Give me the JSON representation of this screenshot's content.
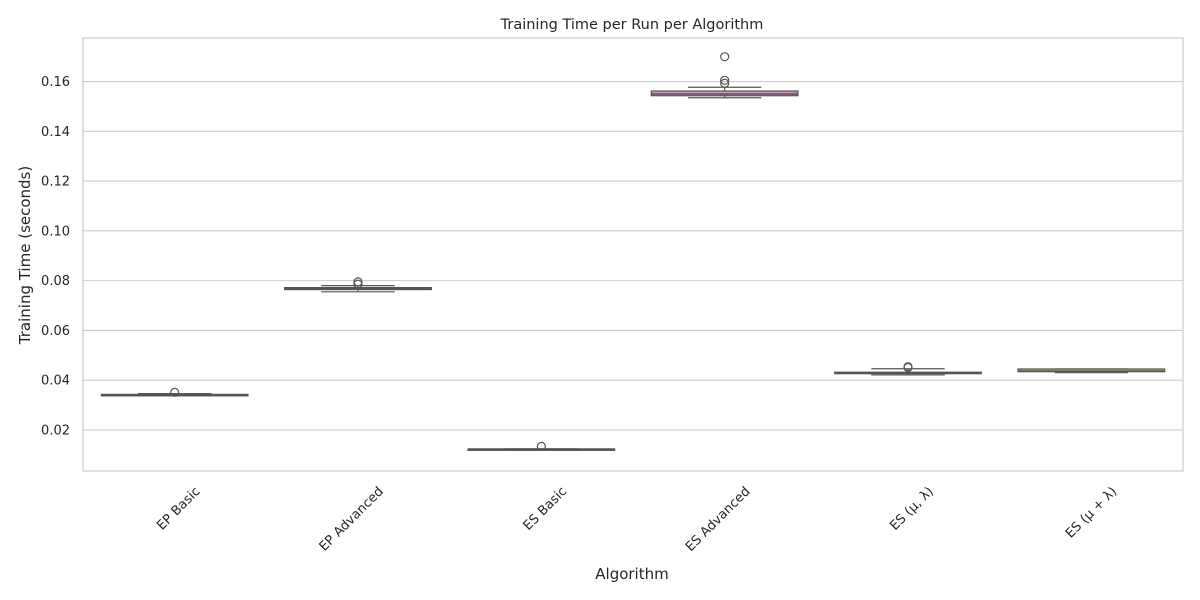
{
  "chart_data": {
    "type": "box",
    "title": "Training Time per Run per Algorithm",
    "xlabel": "Algorithm",
    "ylabel": "Training Time (seconds)",
    "ylim": [
      0.0035,
      0.1775
    ],
    "yticks": [
      0.02,
      0.04,
      0.06,
      0.08,
      0.1,
      0.12,
      0.14,
      0.16
    ],
    "ytick_labels": [
      "0.02",
      "0.04",
      "0.06",
      "0.08",
      "0.10",
      "0.12",
      "0.14",
      "0.16"
    ],
    "grid": true,
    "categories": [
      "EP Basic",
      "EP Advanced",
      "ES Basic",
      "ES Advanced",
      "ES (μ, λ)",
      "ES (μ + λ)"
    ],
    "boxes": [
      {
        "category": "EP Basic",
        "whisker_low": 0.034,
        "q1": 0.034,
        "median": 0.0341,
        "q3": 0.0343,
        "whisker_high": 0.0346,
        "outliers": [
          0.0351
        ],
        "color": "#7295b8"
      },
      {
        "category": "EP Advanced",
        "whisker_low": 0.0755,
        "q1": 0.0764,
        "median": 0.0768,
        "q3": 0.0772,
        "whisker_high": 0.078,
        "outliers": [
          0.0786,
          0.0795
        ],
        "color": "#d9925a"
      },
      {
        "category": "ES Basic",
        "whisker_low": 0.0121,
        "q1": 0.0121,
        "median": 0.0122,
        "q3": 0.0124,
        "whisker_high": 0.0124,
        "outliers": [
          0.0134
        ],
        "color": "#6aa86a"
      },
      {
        "category": "ES Advanced",
        "whisker_low": 0.1535,
        "q1": 0.1543,
        "median": 0.155,
        "q3": 0.1562,
        "whisker_high": 0.1577,
        "outliers": [
          0.1593,
          0.1605,
          0.17
        ],
        "color": "#d58fbf"
      },
      {
        "category": "ES (μ, λ)",
        "whisker_low": 0.0421,
        "q1": 0.0427,
        "median": 0.0429,
        "q3": 0.0432,
        "whisker_high": 0.0446,
        "outliers": [
          0.0451,
          0.0454
        ],
        "color": "#8f8f8f"
      },
      {
        "category": "ES (μ + λ)",
        "whisker_low": 0.043,
        "q1": 0.0434,
        "median": 0.0436,
        "q3": 0.0445,
        "whisker_high": 0.0445,
        "outliers": [],
        "color": "#bdb86a"
      }
    ]
  }
}
